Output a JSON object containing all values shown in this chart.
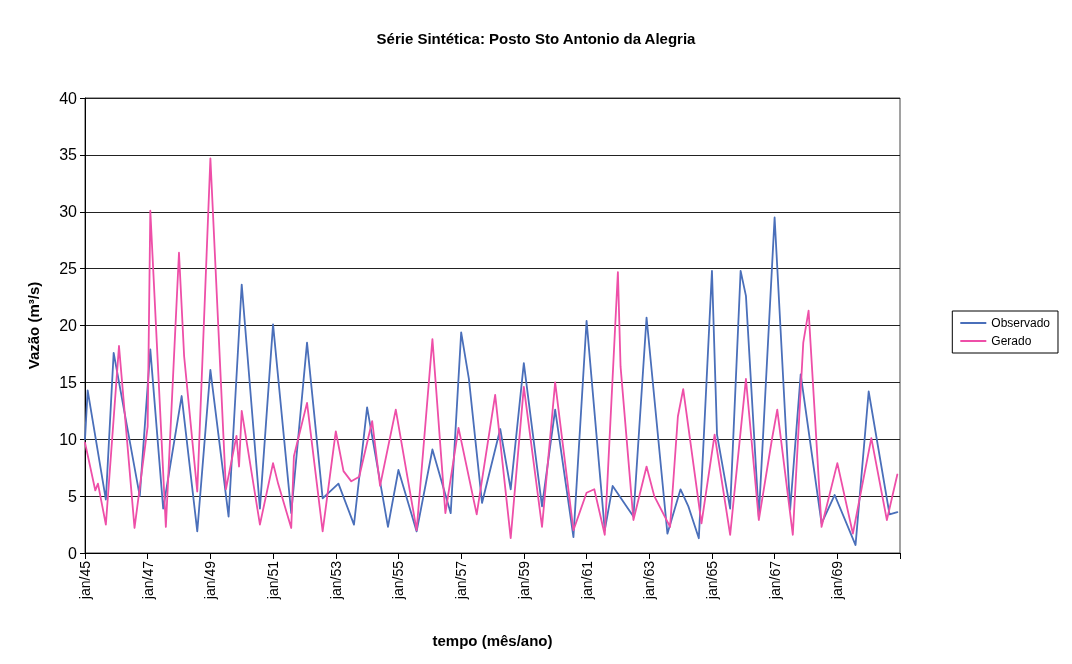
{
  "chart_data": {
    "type": "line",
    "title": "Série Sintética: Posto Sto Antonio da Alegria",
    "xlabel": "tempo (mês/ano)",
    "ylabel": "Vazão (m³/s)",
    "xlim": [
      "1945-01",
      "1971-01"
    ],
    "xticks": [
      {
        "value": "1945-01",
        "label": "jan/45"
      },
      {
        "value": "1947-01",
        "label": "jan/47"
      },
      {
        "value": "1949-01",
        "label": "jan/49"
      },
      {
        "value": "1951-01",
        "label": "jan/51"
      },
      {
        "value": "1953-01",
        "label": "jan/53"
      },
      {
        "value": "1955-01",
        "label": "jan/55"
      },
      {
        "value": "1957-01",
        "label": "jan/57"
      },
      {
        "value": "1959-01",
        "label": "jan/59"
      },
      {
        "value": "1961-01",
        "label": "jan/61"
      },
      {
        "value": "1963-01",
        "label": "jan/63"
      },
      {
        "value": "1965-01",
        "label": "jan/65"
      },
      {
        "value": "1967-01",
        "label": "jan/67"
      },
      {
        "value": "1969-01",
        "label": "jan/69"
      },
      {
        "value": "1971-01",
        "label": null
      }
    ],
    "ylim": [
      0,
      40
    ],
    "yticks": [
      0,
      5,
      10,
      15,
      20,
      25,
      30,
      35,
      40
    ],
    "grid": "y",
    "legend": "right",
    "marker": "none",
    "line_style": "solid",
    "series": [
      {
        "name": "Observado",
        "color": "#4a6fba",
        "x": [
          "1945-01",
          "1945-02",
          "1945-09",
          "1945-12",
          "1946-10",
          "1946-12",
          "1947-02",
          "1947-07",
          "1948-02",
          "1948-08",
          "1949-01",
          "1949-08",
          "1950-01",
          "1950-08",
          "1951-01",
          "1951-08",
          "1952-02",
          "1952-08",
          "1953-02",
          "1953-08",
          "1954-01",
          "1954-09",
          "1955-01",
          "1955-08",
          "1956-02",
          "1956-09",
          "1957-01",
          "1957-04",
          "1957-09",
          "1958-04",
          "1958-08",
          "1959-01",
          "1959-08",
          "1960-01",
          "1960-08",
          "1961-01",
          "1961-08",
          "1961-11",
          "1962-07",
          "1962-12",
          "1963-08",
          "1964-01",
          "1964-04",
          "1964-08",
          "1965-01",
          "1965-03",
          "1965-08",
          "1965-12",
          "1966-02",
          "1966-07",
          "1967-01",
          "1967-07",
          "1967-11",
          "1968-07",
          "1968-12",
          "1969-08",
          "1970-01",
          "1970-09",
          "1970-12"
        ],
        "values": [
          10,
          14.3,
          4.7,
          17.6,
          5.0,
          11.4,
          17.9,
          3.9,
          13.8,
          1.9,
          16.1,
          3.2,
          23.6,
          3.9,
          20.1,
          3.5,
          18.5,
          4.8,
          6.1,
          2.5,
          12.8,
          2.3,
          7.3,
          1.9,
          9.1,
          3.5,
          19.4,
          15.3,
          4.4,
          10.9,
          5.6,
          16.7,
          4.1,
          12.6,
          1.4,
          20.4,
          2.0,
          5.9,
          3.2,
          20.7,
          1.7,
          5.6,
          4.1,
          1.3,
          24.8,
          10.4,
          3.9,
          24.8,
          22.6,
          3.2,
          29.5,
          3.8,
          15.7,
          2.6,
          5.1,
          0.7,
          14.2,
          3.4,
          3.6
        ]
      },
      {
        "name": "Gerado",
        "color": "#ee4fa8",
        "x": [
          "1945-01",
          "1945-05",
          "1945-06",
          "1945-09",
          "1946-02",
          "1946-08",
          "1947-01",
          "1947-02",
          "1947-08",
          "1948-01",
          "1948-03",
          "1948-08",
          "1949-01",
          "1949-07",
          "1949-11",
          "1949-12",
          "1950-01",
          "1950-08",
          "1951-01",
          "1951-03",
          "1951-08",
          "1951-09",
          "1952-02",
          "1952-08",
          "1953-01",
          "1953-04",
          "1953-07",
          "1953-10",
          "1954-03",
          "1954-06",
          "1954-12",
          "1955-08",
          "1956-02",
          "1956-07",
          "1956-12",
          "1957-07",
          "1958-02",
          "1958-08",
          "1959-01",
          "1959-08",
          "1960-01",
          "1960-08",
          "1961-01",
          "1961-04",
          "1961-08",
          "1962-01",
          "1962-02",
          "1962-07",
          "1962-12",
          "1963-03",
          "1963-09",
          "1963-12",
          "1964-02",
          "1964-09",
          "1965-02",
          "1965-08",
          "1966-02",
          "1966-07",
          "1966-12",
          "1967-02",
          "1967-08",
          "1967-12",
          "1968-02",
          "1968-07",
          "1969-01",
          "1969-07",
          "1970-02",
          "1970-08",
          "1970-12"
        ],
        "values": [
          9.7,
          5.5,
          6.1,
          2.5,
          18.2,
          2.2,
          11.1,
          30.1,
          2.3,
          26.4,
          17.3,
          5.4,
          34.7,
          5.6,
          10.3,
          7.6,
          12.5,
          2.5,
          7.9,
          6.1,
          2.2,
          8.5,
          13.2,
          1.9,
          10.7,
          7.2,
          6.3,
          6.7,
          11.6,
          5.9,
          12.6,
          2.0,
          18.8,
          3.5,
          11.0,
          3.4,
          13.9,
          1.3,
          14.6,
          2.3,
          15.0,
          2.0,
          5.3,
          5.6,
          1.6,
          24.7,
          16.4,
          2.9,
          7.6,
          5.0,
          2.3,
          12.0,
          14.4,
          2.6,
          10.4,
          1.6,
          15.3,
          2.9,
          10.0,
          12.6,
          1.6,
          18.5,
          21.3,
          2.3,
          7.9,
          1.7,
          10.1,
          2.9,
          6.9
        ]
      }
    ]
  }
}
